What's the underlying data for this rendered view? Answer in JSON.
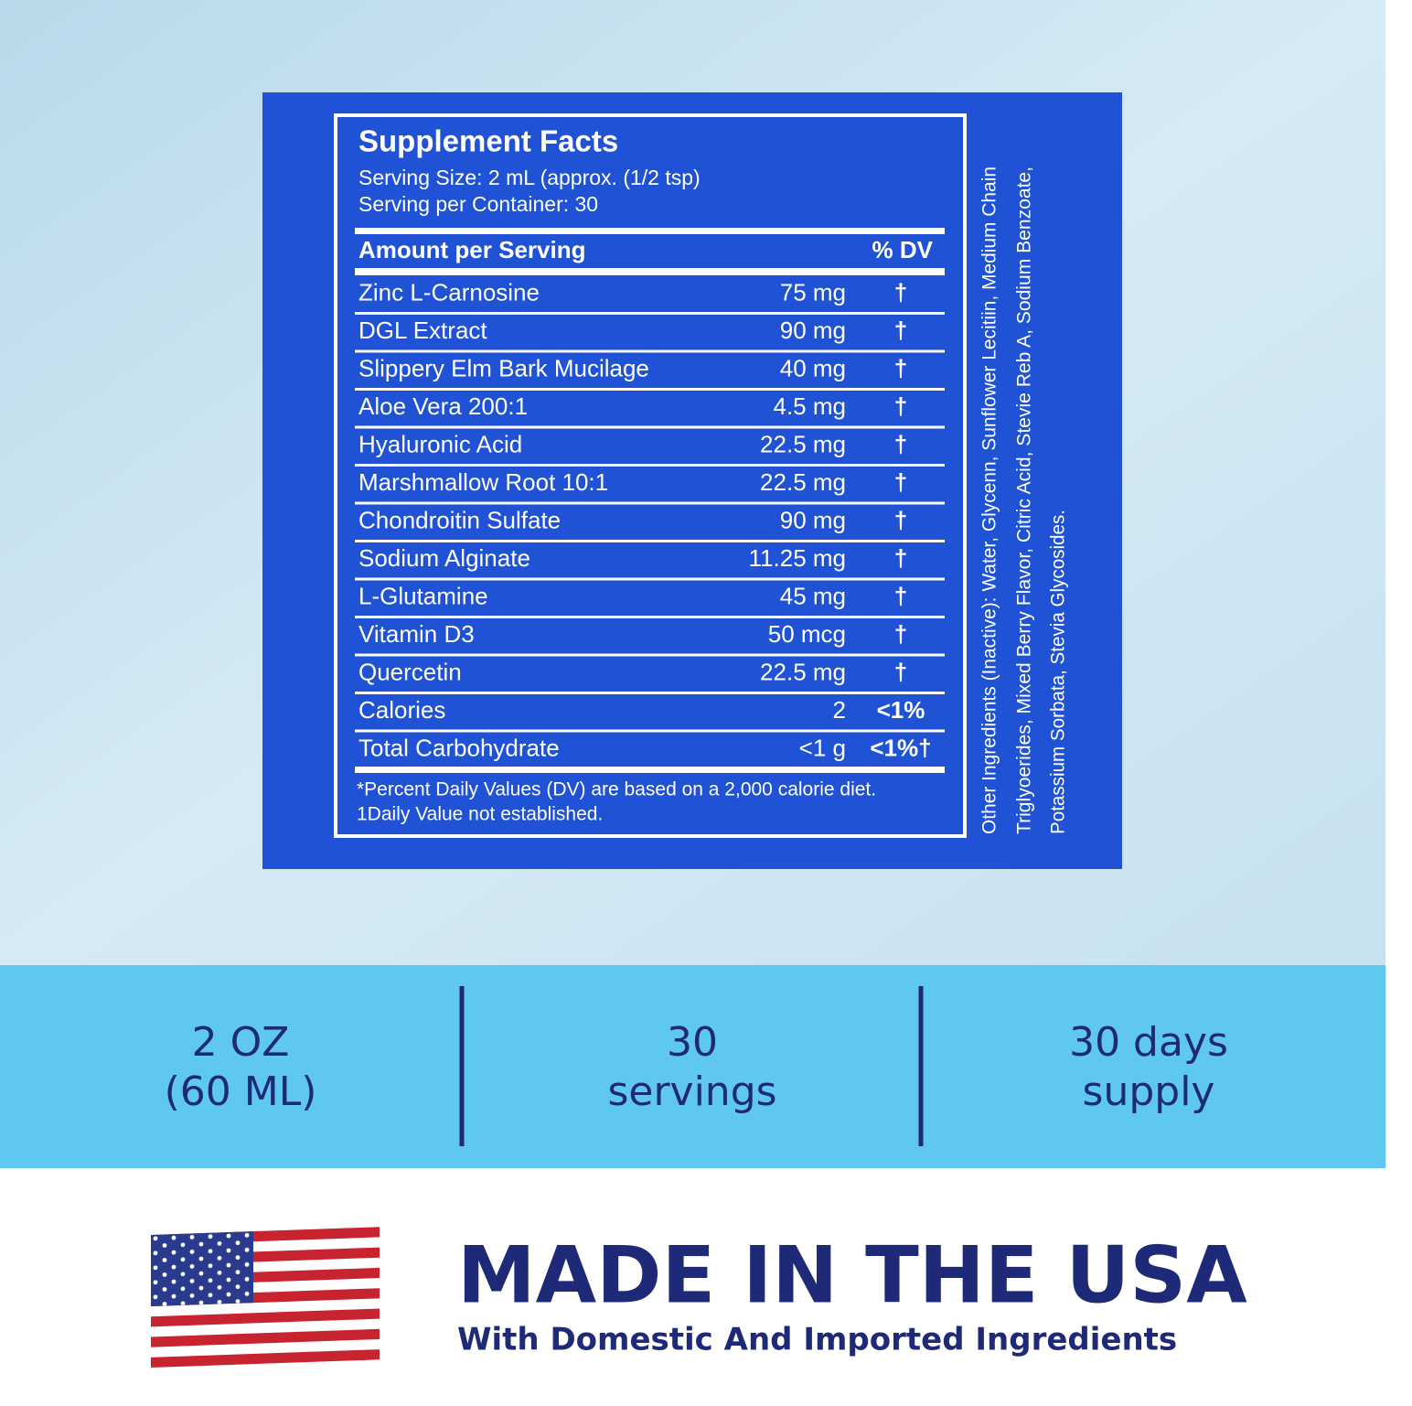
{
  "label": {
    "title": "Supplement Facts",
    "serving_size": "Serving Size: 2 mL (approx. (1/2 tsp)",
    "servings_per_container": "Serving per Container: 30",
    "header": [
      "Amount per Serving",
      "% DV"
    ],
    "rows": [
      [
        "Zinc L-Carnosine",
        "75 mg",
        "†"
      ],
      [
        "DGL Extract",
        "90 mg",
        "†"
      ],
      [
        "Slippery Elm Bark Mucilage",
        "40 mg",
        "†"
      ],
      [
        "Aloe Vera 200:1",
        "4.5 mg",
        "†"
      ],
      [
        "Hyaluronic Acid",
        "22.5 mg",
        "†"
      ],
      [
        "Marshmallow Root 10:1",
        "22.5 mg",
        "†"
      ],
      [
        "Chondroitin Sulfate",
        "90 mg",
        "†"
      ],
      [
        "Sodium Alginate",
        "11.25 mg",
        "†"
      ],
      [
        "L-Glutamine",
        "45 mg",
        "†"
      ],
      [
        "Vitamin D3",
        "50 mcg",
        "†"
      ],
      [
        "Quercetin",
        "22.5 mg",
        "†"
      ],
      [
        "Calories",
        "2",
        "<1%"
      ],
      [
        "Total Carbohydrate",
        "<1 g",
        "<1%†"
      ]
    ],
    "footnotes": [
      "*Percent Daily Values (DV) are based  on a 2,000 calorie diet.",
      "1Daily Value not established."
    ],
    "other_ingredients": [
      "Other Ingredients (Inactive): Water, Glycenn, Sunflower Lecitiin, Medium Chain",
      "Triglyoerides, Mixed Berry Flavor, Citric Acid, Stevie Reb A, Sodium Benzoate,",
      "Potassium Sorbata, Stevia Glycosides."
    ]
  },
  "stats": [
    [
      "2 OZ",
      "(60 ML)"
    ],
    [
      "30",
      "servings"
    ],
    [
      "30 days",
      "supply"
    ]
  ],
  "banner": {
    "title": "MADE IN THE USA",
    "subtitle": "With Domestic And Imported Ingredients"
  }
}
